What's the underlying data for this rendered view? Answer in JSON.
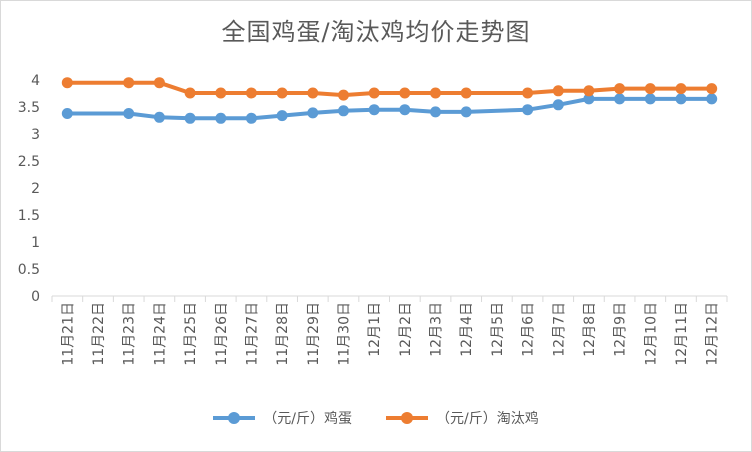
{
  "chart_data": {
    "type": "line",
    "title": "全国鸡蛋/淘汰鸡均价走势图",
    "categories": [
      "11月21日",
      "11月22日",
      "11月23日",
      "11月24日",
      "11月25日",
      "11月26日",
      "11月27日",
      "11月28日",
      "11月29日",
      "11月30日",
      "12月1日",
      "12月2日",
      "12月3日",
      "12月4日",
      "12月5日",
      "12月6日",
      "12月7日",
      "12月8日",
      "12月9日",
      "12月10日",
      "12月11日",
      "12月12日"
    ],
    "ylim": [
      0,
      4
    ],
    "yticks": [
      "0",
      "0.5",
      "1",
      "1.5",
      "2",
      "2.5",
      "3",
      "3.5",
      "4"
    ],
    "ytick_values": [
      0,
      0.5,
      1,
      1.5,
      2,
      2.5,
      3,
      3.5,
      4
    ],
    "grid": false,
    "legend_position": "bottom",
    "series": [
      {
        "name": "（元/斤）鸡蛋",
        "color": "#5b9bd5",
        "values": [
          3.38,
          null,
          3.38,
          3.31,
          3.29,
          3.29,
          3.29,
          3.34,
          3.39,
          3.43,
          3.45,
          3.45,
          3.41,
          3.41,
          null,
          3.45,
          3.54,
          3.65,
          3.65,
          3.65,
          3.65,
          3.65
        ]
      },
      {
        "name": "（元/斤）淘汰鸡",
        "color": "#ed7d31",
        "values": [
          3.95,
          null,
          3.95,
          3.95,
          3.76,
          3.76,
          3.76,
          3.76,
          3.76,
          3.72,
          3.76,
          3.76,
          3.76,
          3.76,
          null,
          3.76,
          3.8,
          3.8,
          3.84,
          3.84,
          3.84,
          3.84
        ]
      }
    ]
  }
}
